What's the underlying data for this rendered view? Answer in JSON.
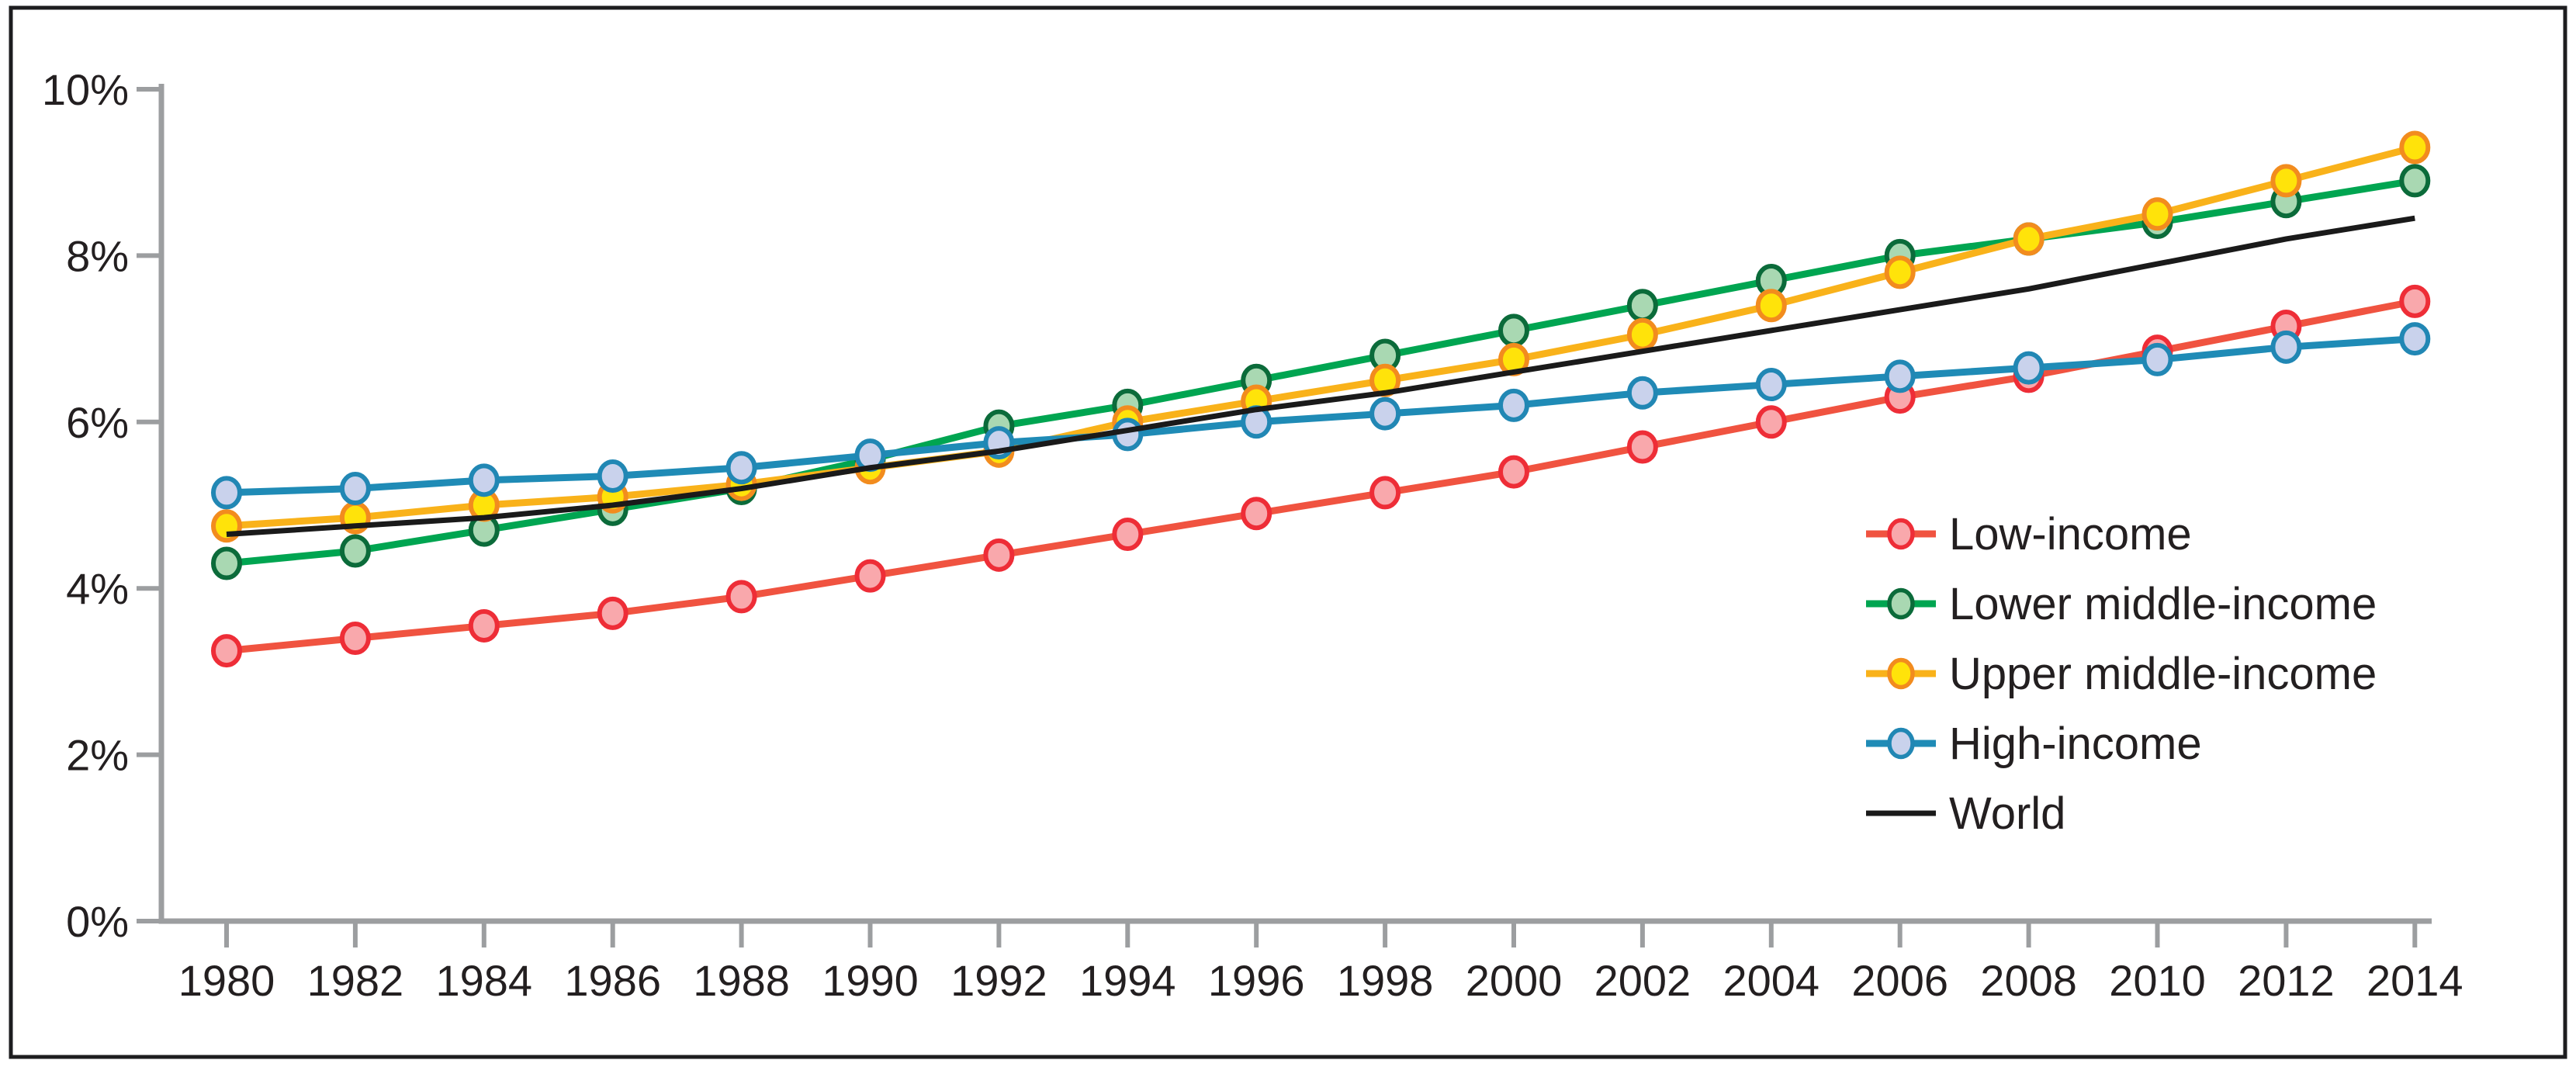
{
  "figure": {
    "background": "#ffffff",
    "frame_color": "#1d1d1f",
    "axis_color": "#9c9ea0",
    "text_color": "#231f20"
  },
  "chart_data": {
    "type": "line",
    "title": "",
    "xlabel": "",
    "ylabel": "",
    "grid": false,
    "legend_position": "right-middle",
    "ylim": [
      0,
      10
    ],
    "yticks": [
      0,
      2,
      4,
      6,
      8,
      10
    ],
    "ytick_labels": [
      "0%",
      "2%",
      "4%",
      "6%",
      "8%",
      "10%"
    ],
    "x": [
      1980,
      1982,
      1984,
      1986,
      1988,
      1990,
      1992,
      1994,
      1996,
      1998,
      2000,
      2002,
      2004,
      2006,
      2008,
      2010,
      2012,
      2014
    ],
    "series": [
      {
        "name": "Low-income",
        "slug": "low-income",
        "color": "#f05340",
        "marker": true,
        "marker_fill": "#f9a8ac",
        "marker_stroke": "#ee2d37",
        "values": [
          3.25,
          3.4,
          3.55,
          3.7,
          3.9,
          4.15,
          4.4,
          4.65,
          4.9,
          5.15,
          5.4,
          5.7,
          6.0,
          6.3,
          6.55,
          6.85,
          7.15,
          7.45
        ]
      },
      {
        "name": "Lower middle-income",
        "slug": "lower-middle-income",
        "color": "#00a551",
        "marker": true,
        "marker_fill": "#a9d8b2",
        "marker_stroke": "#0b6b3a",
        "values": [
          4.3,
          4.45,
          4.7,
          4.95,
          5.2,
          5.55,
          5.95,
          6.2,
          6.5,
          6.8,
          7.1,
          7.4,
          7.7,
          8.0,
          8.2,
          8.4,
          8.65,
          8.9
        ]
      },
      {
        "name": "Upper middle-income",
        "slug": "upper-middle-income",
        "color": "#f9b21a",
        "marker": true,
        "marker_fill": "#ffe30a",
        "marker_stroke": "#f28c1e",
        "values": [
          4.75,
          4.85,
          5.0,
          5.1,
          5.25,
          5.45,
          5.65,
          6.0,
          6.25,
          6.5,
          6.75,
          7.05,
          7.4,
          7.8,
          8.2,
          8.5,
          8.9,
          9.3
        ]
      },
      {
        "name": "High-income",
        "slug": "high-income",
        "color": "#1f8bb6",
        "marker": true,
        "marker_fill": "#c9d2ec",
        "marker_stroke": "#2187b4",
        "values": [
          5.15,
          5.2,
          5.3,
          5.35,
          5.45,
          5.6,
          5.75,
          5.85,
          6.0,
          6.1,
          6.2,
          6.35,
          6.45,
          6.55,
          6.65,
          6.75,
          6.9,
          7.0
        ]
      },
      {
        "name": "World",
        "slug": "world",
        "color": "#1a1a1a",
        "marker": false,
        "values": [
          4.65,
          4.75,
          4.85,
          5.0,
          5.2,
          5.45,
          5.65,
          5.9,
          6.15,
          6.35,
          6.6,
          6.85,
          7.1,
          7.35,
          7.6,
          7.9,
          8.2,
          8.45
        ]
      }
    ]
  }
}
